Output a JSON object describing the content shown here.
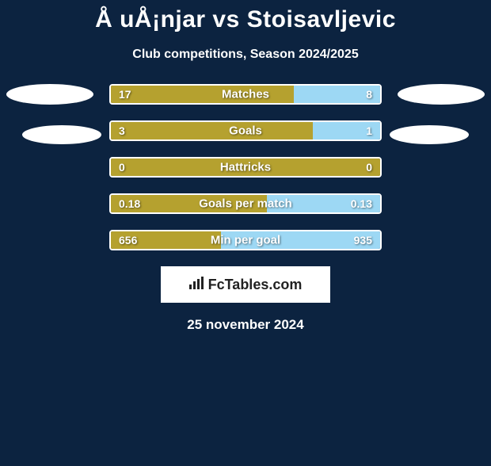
{
  "title": "Å uÅ¡njar vs Stoisavljevic",
  "subtitle": "Club competitions, Season 2024/2025",
  "date": "25 november 2024",
  "logo_text": "FcTables.com",
  "colors": {
    "background": "#0c2340",
    "left_bar": "#b5a12f",
    "right_bar": "#9dd8f4",
    "border": "#ffffff",
    "ellipse": "#ffffff",
    "text": "#ffffff"
  },
  "bars": [
    {
      "label": "Matches",
      "left_value": "17",
      "right_value": "8",
      "left_width_pct": 68,
      "right_width_pct": 32
    },
    {
      "label": "Goals",
      "left_value": "3",
      "right_value": "1",
      "left_width_pct": 75,
      "right_width_pct": 25
    },
    {
      "label": "Hattricks",
      "left_value": "0",
      "right_value": "0",
      "left_width_pct": 100,
      "right_width_pct": 0
    },
    {
      "label": "Goals per match",
      "left_value": "0.18",
      "right_value": "0.13",
      "left_width_pct": 58,
      "right_width_pct": 42
    },
    {
      "label": "Min per goal",
      "left_value": "656",
      "right_value": "935",
      "left_width_pct": 41,
      "right_width_pct": 59
    }
  ]
}
